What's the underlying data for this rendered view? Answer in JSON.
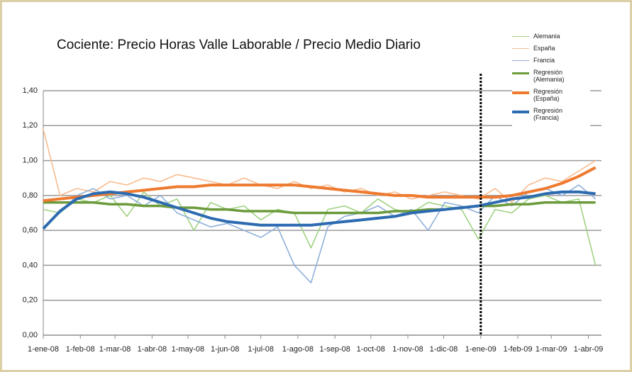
{
  "chart_data": {
    "type": "line",
    "title": "Cociente: Precio Horas  Valle Laborable /  Precio Medio Diario",
    "x": [
      "2008-01-01",
      "2008-01-15",
      "2008-01-29",
      "2008-02-12",
      "2008-02-26",
      "2008-03-11",
      "2008-03-25",
      "2008-04-08",
      "2008-04-22",
      "2008-05-06",
      "2008-05-20",
      "2008-06-03",
      "2008-06-17",
      "2008-07-01",
      "2008-07-15",
      "2008-07-29",
      "2008-08-12",
      "2008-08-26",
      "2008-09-09",
      "2008-09-23",
      "2008-10-07",
      "2008-10-21",
      "2008-11-04",
      "2008-11-18",
      "2008-12-02",
      "2008-12-16",
      "2008-12-30",
      "2009-01-13",
      "2009-01-27",
      "2009-02-10",
      "2009-02-24",
      "2009-03-10",
      "2009-03-24",
      "2009-04-07"
    ],
    "series": [
      {
        "name": "Alemania",
        "color": "#9fd282",
        "width": 1.6,
        "values": [
          0.72,
          0.7,
          0.78,
          0.76,
          0.8,
          0.68,
          0.82,
          0.74,
          0.78,
          0.6,
          0.76,
          0.72,
          0.74,
          0.66,
          0.72,
          0.7,
          0.5,
          0.72,
          0.74,
          0.7,
          0.78,
          0.72,
          0.7,
          0.76,
          0.74,
          0.72,
          0.55,
          0.72,
          0.7,
          0.78,
          0.8,
          0.76,
          0.78,
          0.4
        ]
      },
      {
        "name": "España",
        "color": "#f8bb8e",
        "width": 1.6,
        "values": [
          1.18,
          0.8,
          0.84,
          0.82,
          0.88,
          0.86,
          0.9,
          0.88,
          0.92,
          0.9,
          0.88,
          0.86,
          0.9,
          0.86,
          0.84,
          0.88,
          0.84,
          0.86,
          0.82,
          0.84,
          0.8,
          0.82,
          0.78,
          0.8,
          0.82,
          0.8,
          0.78,
          0.84,
          0.76,
          0.86,
          0.9,
          0.88,
          0.94,
          1.0
        ]
      },
      {
        "name": "Francia",
        "color": "#8fb0da",
        "width": 1.6,
        "values": [
          0.62,
          0.7,
          0.8,
          0.84,
          0.78,
          0.8,
          0.74,
          0.8,
          0.7,
          0.66,
          0.62,
          0.64,
          0.6,
          0.56,
          0.62,
          0.4,
          0.3,
          0.62,
          0.68,
          0.7,
          0.74,
          0.68,
          0.72,
          0.6,
          0.76,
          0.74,
          0.7,
          0.8,
          0.74,
          0.82,
          0.84,
          0.8,
          0.86,
          0.78
        ]
      },
      {
        "name": "Regresión (Alemania)",
        "color": "#6b9b3c",
        "width": 3.5,
        "values": [
          0.76,
          0.76,
          0.76,
          0.76,
          0.75,
          0.75,
          0.74,
          0.74,
          0.73,
          0.73,
          0.72,
          0.72,
          0.71,
          0.71,
          0.71,
          0.7,
          0.7,
          0.7,
          0.7,
          0.7,
          0.7,
          0.71,
          0.71,
          0.72,
          0.72,
          0.73,
          0.74,
          0.74,
          0.75,
          0.75,
          0.76,
          0.76,
          0.76,
          0.76
        ]
      },
      {
        "name": "Regresión (España)",
        "color": "#ee7a30",
        "width": 4,
        "values": [
          0.77,
          0.78,
          0.79,
          0.8,
          0.81,
          0.82,
          0.83,
          0.84,
          0.85,
          0.85,
          0.86,
          0.86,
          0.86,
          0.86,
          0.86,
          0.86,
          0.85,
          0.84,
          0.83,
          0.82,
          0.81,
          0.8,
          0.8,
          0.79,
          0.79,
          0.79,
          0.79,
          0.79,
          0.8,
          0.82,
          0.84,
          0.87,
          0.91,
          0.96
        ]
      },
      {
        "name": "Regresión (Francia)",
        "color": "#2d6bb1",
        "width": 4,
        "values": [
          0.61,
          0.71,
          0.78,
          0.81,
          0.82,
          0.81,
          0.79,
          0.76,
          0.73,
          0.7,
          0.67,
          0.65,
          0.64,
          0.63,
          0.63,
          0.63,
          0.63,
          0.64,
          0.65,
          0.66,
          0.67,
          0.68,
          0.7,
          0.71,
          0.72,
          0.73,
          0.74,
          0.76,
          0.78,
          0.79,
          0.81,
          0.82,
          0.82,
          0.81
        ]
      }
    ],
    "xlim": [
      "2008-01-01",
      "2009-04-12"
    ],
    "xticks": [
      {
        "value": "2008-01-01",
        "label": "1-ene-08"
      },
      {
        "value": "2008-02-01",
        "label": "1-feb-08"
      },
      {
        "value": "2008-03-01",
        "label": "1-mar-08"
      },
      {
        "value": "2008-04-01",
        "label": "1-abr-08"
      },
      {
        "value": "2008-05-01",
        "label": "1-may-08"
      },
      {
        "value": "2008-06-01",
        "label": "1-jun-08"
      },
      {
        "value": "2008-07-01",
        "label": "1-jul-08"
      },
      {
        "value": "2008-08-01",
        "label": "1-ago-08"
      },
      {
        "value": "2008-09-01",
        "label": "1-sep-08"
      },
      {
        "value": "2008-10-01",
        "label": "1-oct-08"
      },
      {
        "value": "2008-11-01",
        "label": "1-nov-08"
      },
      {
        "value": "2008-12-01",
        "label": "1-dic-08"
      },
      {
        "value": "2009-01-01",
        "label": "1-ene-09"
      },
      {
        "value": "2009-02-01",
        "label": "1-feb-09"
      },
      {
        "value": "2009-03-01",
        "label": "1-mar-09"
      },
      {
        "value": "2009-04-01",
        "label": "1-abr-09"
      }
    ],
    "ylim": [
      0,
      1.4
    ],
    "yticks": [
      {
        "value": 0,
        "label": "0,00"
      },
      {
        "value": 0.2,
        "label": "0,20"
      },
      {
        "value": 0.4,
        "label": "0,40"
      },
      {
        "value": 0.6,
        "label": "0,60"
      },
      {
        "value": 0.8,
        "label": "0,80"
      },
      {
        "value": 1.0,
        "label": "1,00"
      },
      {
        "value": 1.2,
        "label": "1,20"
      },
      {
        "value": 1.4,
        "label": "1,40"
      }
    ],
    "vline": "2009-01-01",
    "grid": true,
    "legend": "top-right"
  }
}
